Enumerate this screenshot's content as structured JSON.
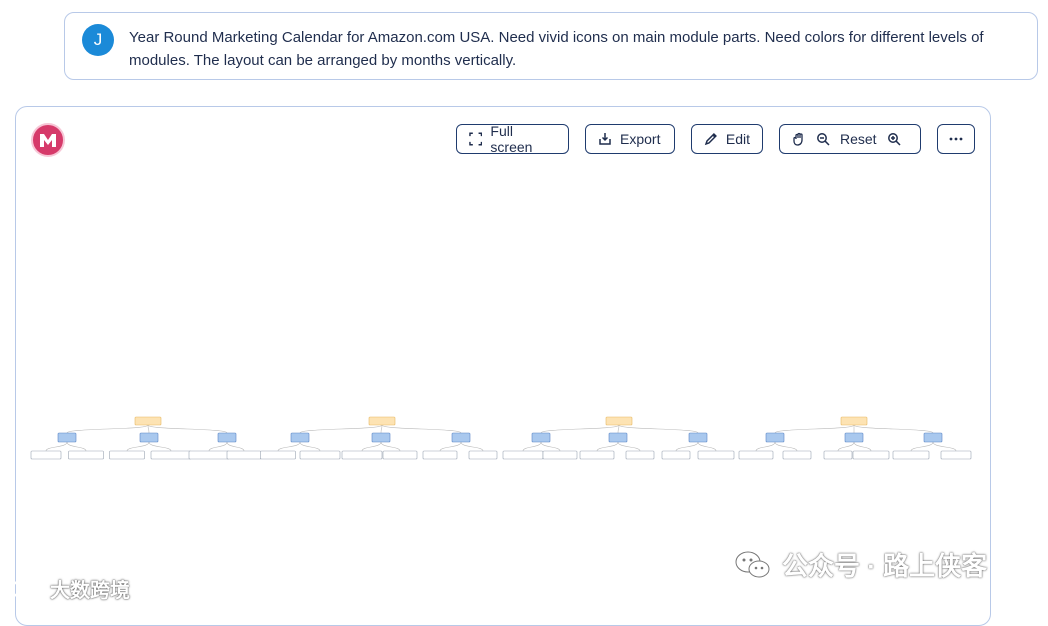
{
  "prompt": {
    "avatar_letter": "J",
    "text": "Year Round Marketing Calendar for Amazon.com USA. Need vivid icons on main module parts. Need colors for different levels of modules. The layout can be arranged by months vertically."
  },
  "toolbar": {
    "fullscreen_label": "Full screen",
    "export_label": "Export",
    "edit_label": "Edit",
    "reset_label": "Reset",
    "more_icon": "ellipsis-icon"
  },
  "colors": {
    "level1": "#fde3b3",
    "level2": "#a9c8ee",
    "level3": "#ffffff",
    "accent": "#1b8ad8"
  },
  "watermarks": {
    "left": "大数跨境",
    "right": "公众号 · 路上侠客"
  }
}
